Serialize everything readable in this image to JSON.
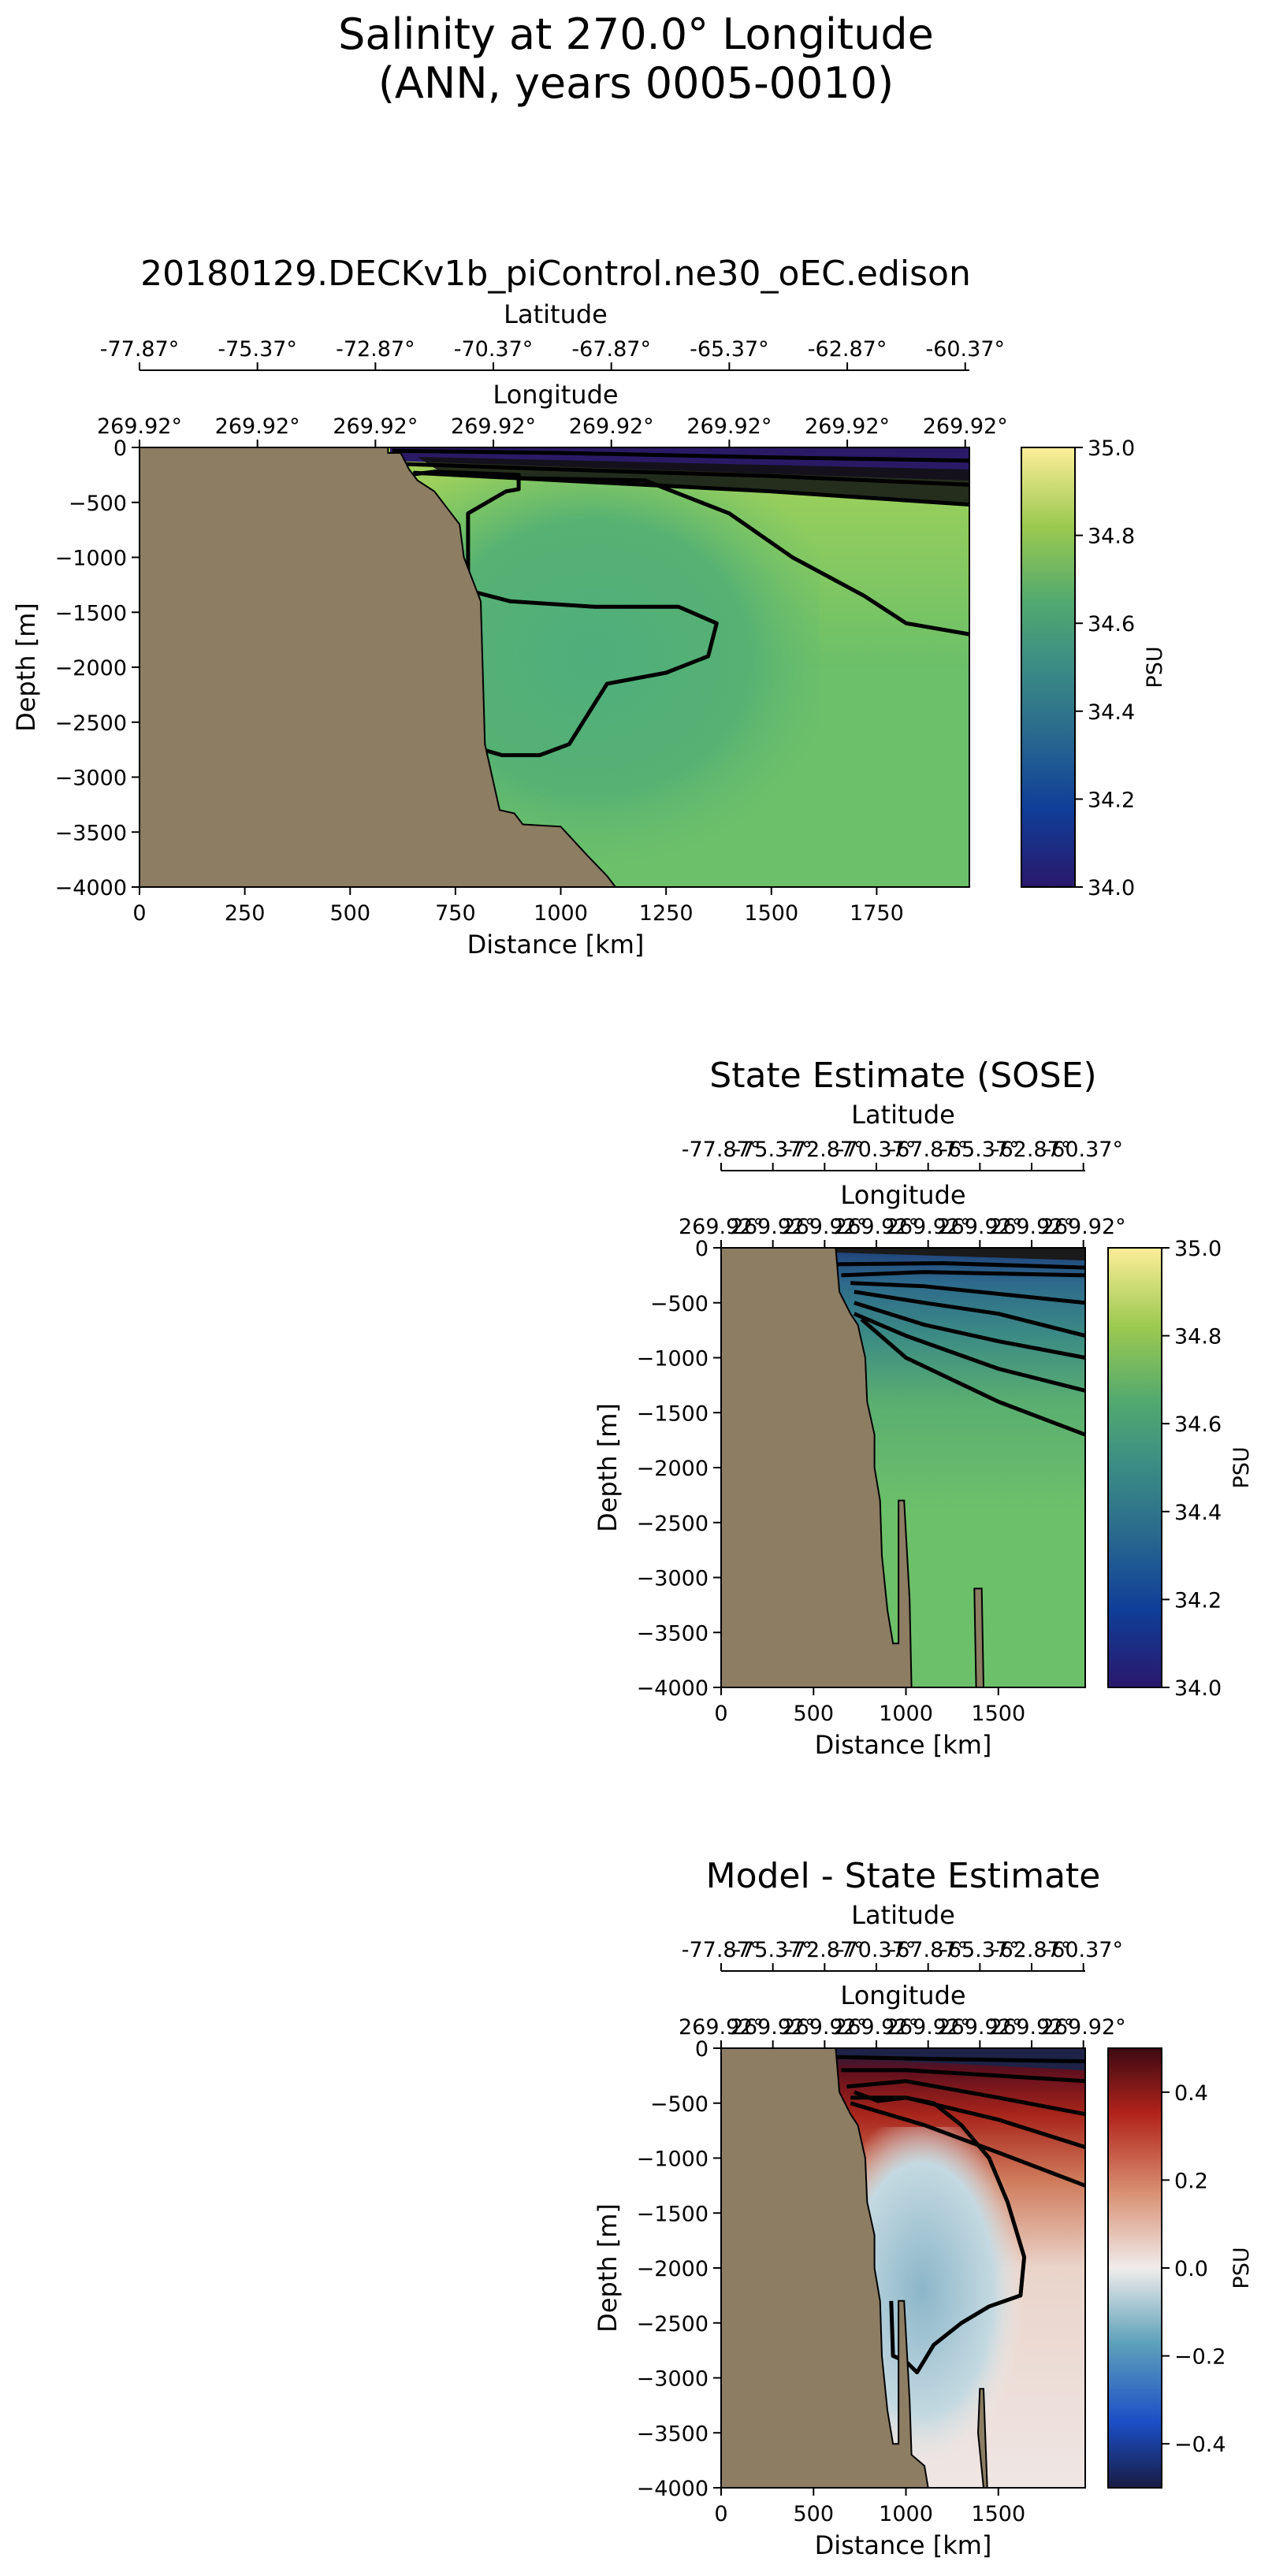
{
  "figure": {
    "title_line1": "Salinity at 270.0° Longitude",
    "title_line2": "(ANN, years 0005-0010)"
  },
  "colors": {
    "land": "#8c7d63",
    "fresh": "#2a1a66",
    "base_green": "#72c36a",
    "contour": "#000000"
  },
  "chart_data": [
    {
      "type": "heatmap",
      "title": "20180129.DECKv1b_piControl.ne30_oEC.edison",
      "xlabel": "Distance [km]",
      "ylabel": "Depth [m]",
      "xlim": [
        0,
        1970
      ],
      "ylim": [
        -4000,
        0
      ],
      "xticks": [
        0,
        250,
        500,
        750,
        1000,
        1250,
        1500,
        1750
      ],
      "xtick_labels": [
        "0",
        "250",
        "500",
        "750",
        "1000",
        "1250",
        "1500",
        "1750"
      ],
      "yticks": [
        0,
        -500,
        -1000,
        -1500,
        -2000,
        -2500,
        -3000,
        -3500,
        -4000
      ],
      "ytick_labels": [
        "0",
        "−500",
        "−1000",
        "−1500",
        "−2000",
        "−2500",
        "−3000",
        "−3500",
        "−4000"
      ],
      "lat_label": "Latitude",
      "lat_ticks": [
        "-77.87°",
        "-75.37°",
        "-72.87°",
        "-70.37°",
        "-67.87°",
        "-65.37°",
        "-62.87°",
        "-60.37°"
      ],
      "lon_label": "Longitude",
      "lon_ticks": [
        "269.92°",
        "269.92°",
        "269.92°",
        "269.92°",
        "269.92°",
        "269.92°",
        "269.92°",
        "269.92°"
      ],
      "colorbar": {
        "label": "PSU",
        "colormap": "haline",
        "range": [
          34.0,
          35.0
        ],
        "ticks": [
          34.0,
          34.2,
          34.4,
          34.6,
          34.8,
          35.0
        ],
        "tick_labels": [
          "34.0",
          "34.2",
          "34.4",
          "34.6",
          "34.8",
          "35.0"
        ]
      },
      "bathymetry": [
        [
          0,
          -4000
        ],
        [
          0,
          0
        ],
        [
          590,
          0
        ],
        [
          590,
          -50
        ],
        [
          620,
          -50
        ],
        [
          640,
          -200
        ],
        [
          660,
          -300
        ],
        [
          700,
          -400
        ],
        [
          720,
          -500
        ],
        [
          760,
          -700
        ],
        [
          770,
          -1000
        ],
        [
          810,
          -1400
        ],
        [
          820,
          -2700
        ],
        [
          855,
          -3300
        ],
        [
          890,
          -3330
        ],
        [
          910,
          -3430
        ],
        [
          1000,
          -3450
        ],
        [
          1060,
          -3700
        ],
        [
          1110,
          -3900
        ],
        [
          1130,
          -4000
        ]
      ],
      "contours": [
        [
          [
            600,
            -30
          ],
          [
            1000,
            -50
          ],
          [
            1500,
            -90
          ],
          [
            1970,
            -120
          ]
        ],
        [
          [
            620,
            -150
          ],
          [
            1000,
            -200
          ],
          [
            1500,
            -260
          ],
          [
            1970,
            -340
          ]
        ],
        [
          [
            650,
            -230
          ],
          [
            1000,
            -300
          ],
          [
            1500,
            -400
          ],
          [
            1970,
            -520
          ]
        ],
        [
          [
            640,
            -250
          ],
          [
            700,
            -220
          ],
          [
            900,
            -250
          ],
          [
            900,
            -380
          ],
          [
            870,
            -400
          ],
          [
            780,
            -600
          ],
          [
            780,
            -1300
          ],
          [
            880,
            -1400
          ],
          [
            1080,
            -1450
          ],
          [
            1280,
            -1450
          ],
          [
            1370,
            -1600
          ],
          [
            1350,
            -1900
          ],
          [
            1250,
            -2050
          ],
          [
            1110,
            -2150
          ],
          [
            1020,
            -2700
          ],
          [
            950,
            -2800
          ],
          [
            860,
            -2800
          ],
          [
            770,
            -2700
          ]
        ],
        [
          [
            900,
            -280
          ],
          [
            1200,
            -300
          ],
          [
            1400,
            -600
          ],
          [
            1550,
            -1000
          ],
          [
            1720,
            -1350
          ],
          [
            1820,
            -1600
          ],
          [
            1970,
            -1700
          ]
        ]
      ]
    },
    {
      "type": "heatmap",
      "title": "State Estimate (SOSE)",
      "xlabel": "Distance [km]",
      "ylabel": "Depth [m]",
      "xlim": [
        0,
        1970
      ],
      "ylim": [
        -4000,
        0
      ],
      "xticks": [
        0,
        500,
        1000,
        1500
      ],
      "xtick_labels": [
        "0",
        "500",
        "1000",
        "1500"
      ],
      "yticks": [
        0,
        -500,
        -1000,
        -1500,
        -2000,
        -2500,
        -3000,
        -3500,
        -4000
      ],
      "ytick_labels": [
        "0",
        "−500",
        "−1000",
        "−1500",
        "−2000",
        "−2500",
        "−3000",
        "−3500",
        "−4000"
      ],
      "lat_label": "Latitude",
      "lat_ticks": [
        "-77.87°",
        "-75.37°",
        "-72.87°",
        "-70.37°",
        "-67.87°",
        "-65.37°",
        "-62.87°",
        "-60.37°"
      ],
      "lon_label": "Longitude",
      "lon_ticks": [
        "269.92°",
        "269.92°",
        "269.92°",
        "269.92°",
        "269.92°",
        "269.92°",
        "269.92°",
        "269.92°"
      ],
      "colorbar": {
        "label": "PSU",
        "colormap": "haline",
        "range": [
          34.0,
          35.0
        ],
        "ticks": [
          34.0,
          34.2,
          34.4,
          34.6,
          34.8,
          35.0
        ],
        "tick_labels": [
          "34.0",
          "34.2",
          "34.4",
          "34.6",
          "34.8",
          "35.0"
        ]
      },
      "bathymetry": [
        [
          0,
          -4000
        ],
        [
          0,
          0
        ],
        [
          620,
          0
        ],
        [
          640,
          -400
        ],
        [
          700,
          -600
        ],
        [
          740,
          -700
        ],
        [
          780,
          -1000
        ],
        [
          790,
          -1400
        ],
        [
          830,
          -1700
        ],
        [
          830,
          -2000
        ],
        [
          860,
          -2300
        ],
        [
          870,
          -2800
        ],
        [
          900,
          -3300
        ],
        [
          930,
          -3600
        ],
        [
          960,
          -3600
        ],
        [
          960,
          -2300
        ],
        [
          990,
          -2300
        ],
        [
          1020,
          -3200
        ],
        [
          1030,
          -4000
        ],
        [
          1380,
          -4000
        ],
        [
          1370,
          -3100
        ],
        [
          1410,
          -3100
        ],
        [
          1420,
          -4000
        ],
        [
          0,
          -4000
        ]
      ],
      "contours": [
        [
          [
            620,
            -150
          ],
          [
            1200,
            -140
          ],
          [
            1970,
            -180
          ]
        ],
        [
          [
            650,
            -250
          ],
          [
            1100,
            -220
          ],
          [
            1970,
            -250
          ]
        ],
        [
          [
            700,
            -320
          ],
          [
            1100,
            -350
          ],
          [
            1970,
            -500
          ]
        ],
        [
          [
            720,
            -400
          ],
          [
            1100,
            -500
          ],
          [
            1500,
            -600
          ],
          [
            1970,
            -800
          ]
        ],
        [
          [
            720,
            -500
          ],
          [
            1100,
            -700
          ],
          [
            1500,
            -850
          ],
          [
            1970,
            -1000
          ]
        ],
        [
          [
            720,
            -600
          ],
          [
            1000,
            -800
          ],
          [
            1500,
            -1100
          ],
          [
            1970,
            -1300
          ]
        ],
        [
          [
            760,
            -650
          ],
          [
            1000,
            -1000
          ],
          [
            1500,
            -1400
          ],
          [
            1970,
            -1700
          ]
        ]
      ]
    },
    {
      "type": "heatmap",
      "title": "Model - State Estimate",
      "xlabel": "Distance [km]",
      "ylabel": "Depth [m]",
      "xlim": [
        0,
        1970
      ],
      "ylim": [
        -4000,
        0
      ],
      "xticks": [
        0,
        500,
        1000,
        1500
      ],
      "xtick_labels": [
        "0",
        "500",
        "1000",
        "1500"
      ],
      "yticks": [
        0,
        -500,
        -1000,
        -1500,
        -2000,
        -2500,
        -3000,
        -3500,
        -4000
      ],
      "ytick_labels": [
        "0",
        "−500",
        "−1000",
        "−1500",
        "−2000",
        "−2500",
        "−3000",
        "−3500",
        "−4000"
      ],
      "lat_label": "Latitude",
      "lat_ticks": [
        "-77.87°",
        "-75.37°",
        "-72.87°",
        "-70.37°",
        "-67.87°",
        "-65.37°",
        "-62.87°",
        "-60.37°"
      ],
      "lon_label": "Longitude",
      "lon_ticks": [
        "269.92°",
        "269.92°",
        "269.92°",
        "269.92°",
        "269.92°",
        "269.92°",
        "269.92°",
        "269.92°"
      ],
      "colorbar": {
        "label": "PSU",
        "colormap": "balance",
        "range": [
          -0.5,
          0.5
        ],
        "ticks": [
          -0.4,
          -0.2,
          0.0,
          0.2,
          0.4
        ],
        "tick_labels": [
          "−0.4",
          "−0.2",
          "0.0",
          "0.2",
          "0.4"
        ]
      },
      "bathymetry": [
        [
          0,
          -4000
        ],
        [
          0,
          0
        ],
        [
          620,
          0
        ],
        [
          640,
          -400
        ],
        [
          700,
          -600
        ],
        [
          740,
          -700
        ],
        [
          780,
          -1000
        ],
        [
          790,
          -1400
        ],
        [
          830,
          -1700
        ],
        [
          830,
          -2000
        ],
        [
          860,
          -2300
        ],
        [
          870,
          -2800
        ],
        [
          900,
          -3300
        ],
        [
          930,
          -3600
        ],
        [
          960,
          -3600
        ],
        [
          960,
          -2300
        ],
        [
          990,
          -2300
        ],
        [
          1020,
          -3200
        ],
        [
          1030,
          -3700
        ],
        [
          1100,
          -3800
        ],
        [
          1120,
          -4000
        ],
        [
          1420,
          -4000
        ],
        [
          1390,
          -3500
        ],
        [
          1400,
          -3100
        ],
        [
          1420,
          -3100
        ],
        [
          1440,
          -4000
        ],
        [
          0,
          -4000
        ]
      ],
      "contours": [
        [
          [
            620,
            -80
          ],
          [
            1200,
            -100
          ],
          [
            1970,
            -120
          ]
        ],
        [
          [
            650,
            -200
          ],
          [
            1000,
            -200
          ],
          [
            1500,
            -250
          ],
          [
            1970,
            -300
          ]
        ],
        [
          [
            680,
            -350
          ],
          [
            1000,
            -300
          ],
          [
            1500,
            -450
          ],
          [
            1970,
            -600
          ]
        ],
        [
          [
            700,
            -450
          ],
          [
            1000,
            -450
          ],
          [
            1500,
            -650
          ],
          [
            1970,
            -900
          ]
        ],
        [
          [
            700,
            -500
          ],
          [
            1100,
            -700
          ],
          [
            1500,
            -950
          ],
          [
            1970,
            -1250
          ]
        ],
        [
          [
            720,
            -400
          ],
          [
            850,
            -480
          ],
          [
            1000,
            -450
          ],
          [
            1150,
            -500
          ],
          [
            1300,
            -700
          ],
          [
            1450,
            -1000
          ],
          [
            1550,
            -1400
          ],
          [
            1640,
            -1900
          ],
          [
            1620,
            -2250
          ],
          [
            1450,
            -2350
          ],
          [
            1300,
            -2500
          ],
          [
            1150,
            -2700
          ],
          [
            1060,
            -2950
          ],
          [
            1000,
            -2850
          ],
          [
            930,
            -2800
          ],
          [
            920,
            -2300
          ]
        ]
      ]
    }
  ]
}
